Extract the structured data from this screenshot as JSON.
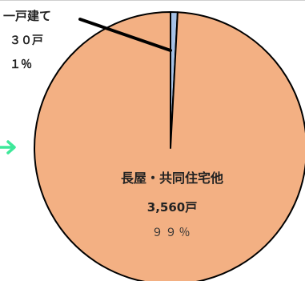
{
  "chart_data": {
    "type": "pie",
    "title": "",
    "slices": [
      {
        "label": "一戸建て",
        "value": 30,
        "value_label": "３０戸",
        "percent": 1,
        "percent_label": "１％",
        "color": "#a6c2e6"
      },
      {
        "label": "長屋・共同住宅他",
        "value": 3560,
        "value_label": "3,560戸",
        "percent": 99,
        "percent_label": "９９％",
        "color": "#f3b083"
      }
    ],
    "start_angle_deg": 0,
    "direction": "clockwise",
    "legend": "none"
  },
  "decorations": {
    "arrow_color": "#3ee89a",
    "arrow_icon": "arrow-right-icon"
  }
}
